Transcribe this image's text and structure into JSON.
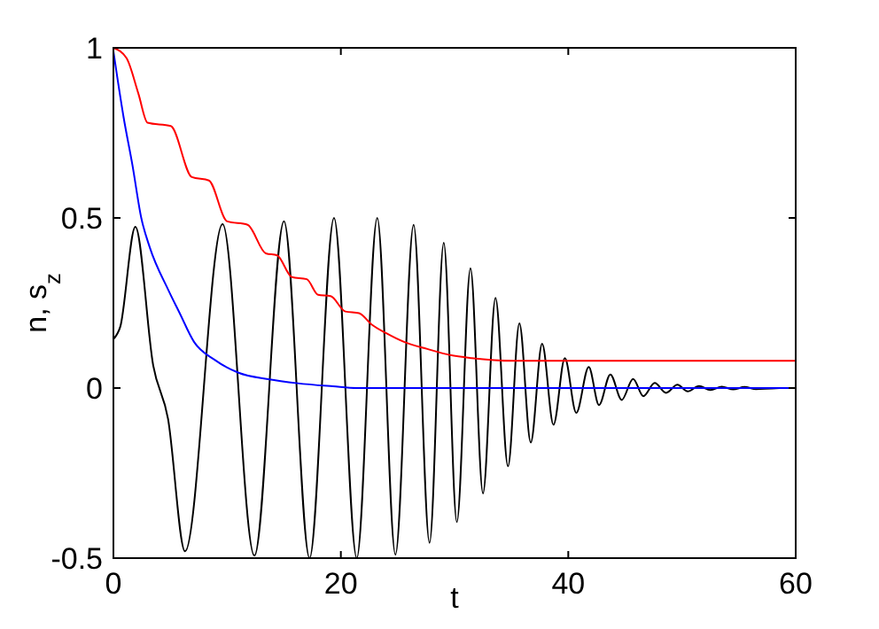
{
  "chart_data": {
    "type": "line",
    "xlabel": "t",
    "ylabel": "n, s$_{z}$",
    "xlim": [
      0,
      60
    ],
    "ylim": [
      -0.5,
      1
    ],
    "xticks": [
      0,
      20,
      40,
      60
    ],
    "yticks": [
      -0.5,
      0,
      0.5,
      1
    ],
    "grid": false,
    "marker": "none",
    "line_style": "solid",
    "series": [
      {
        "color": "#000000",
        "x": [
          0,
          0.6,
          1.93,
          3.5,
          4.8,
          6.3,
          9.6,
          12.4,
          15.0,
          17.25,
          19.4,
          21.4,
          23.2,
          24.8,
          26.4,
          27.8,
          29.05,
          30.2,
          31.4,
          32.5,
          33.6,
          34.7,
          35.7,
          36.7,
          37.7,
          38.7,
          39.7,
          40.7,
          41.8,
          42.7,
          43.7,
          44.7,
          45.7,
          46.6,
          47.6,
          48.6,
          49.6,
          50.5,
          51.5,
          52.5,
          53.5,
          54.5,
          55.5,
          56.5,
          58.6
        ],
        "values": [
          0.144,
          0.18,
          0.474,
          0.066,
          -0.09,
          -0.48,
          0.482,
          -0.493,
          0.49,
          -0.5,
          0.5,
          -0.5,
          0.5,
          -0.49,
          0.48,
          -0.455,
          0.427,
          -0.394,
          0.352,
          -0.31,
          0.265,
          -0.23,
          0.19,
          -0.16,
          0.13,
          -0.108,
          0.088,
          -0.073,
          0.062,
          -0.05,
          0.04,
          -0.035,
          0.027,
          -0.024,
          0.015,
          -0.014,
          0.01,
          -0.01,
          0.006,
          -0.006,
          0.004,
          -0.004,
          0.003,
          -0.003,
          0
        ]
      },
      {
        "color": "#ff0000",
        "x": [
          0,
          1.15,
          2.2,
          3.0,
          5.05,
          6.9,
          8.4,
          10.0,
          11.8,
          13.4,
          14.4,
          15.7,
          17.0,
          18.0,
          19.1,
          20.4,
          21.6,
          22.7,
          24.0,
          25.6,
          27.6,
          29.6,
          31.5,
          35.2,
          60
        ],
        "values": [
          1.0,
          0.97,
          0.865,
          0.78,
          0.77,
          0.62,
          0.61,
          0.49,
          0.48,
          0.396,
          0.39,
          0.326,
          0.32,
          0.274,
          0.27,
          0.225,
          0.22,
          0.187,
          0.161,
          0.135,
          0.115,
          0.097,
          0.088,
          0.08,
          0.08
        ]
      },
      {
        "color": "#0000ff",
        "x": [
          0,
          0.9,
          1.67,
          2.45,
          3.2,
          4.8,
          5.8,
          7.1,
          8.9,
          11.0,
          13.6,
          16.2,
          19.3,
          21.4,
          60
        ],
        "values": [
          0.99,
          0.795,
          0.656,
          0.5,
          0.413,
          0.29,
          0.222,
          0.135,
          0.083,
          0.045,
          0.026,
          0.014,
          0.005,
          0,
          0
        ]
      }
    ]
  }
}
